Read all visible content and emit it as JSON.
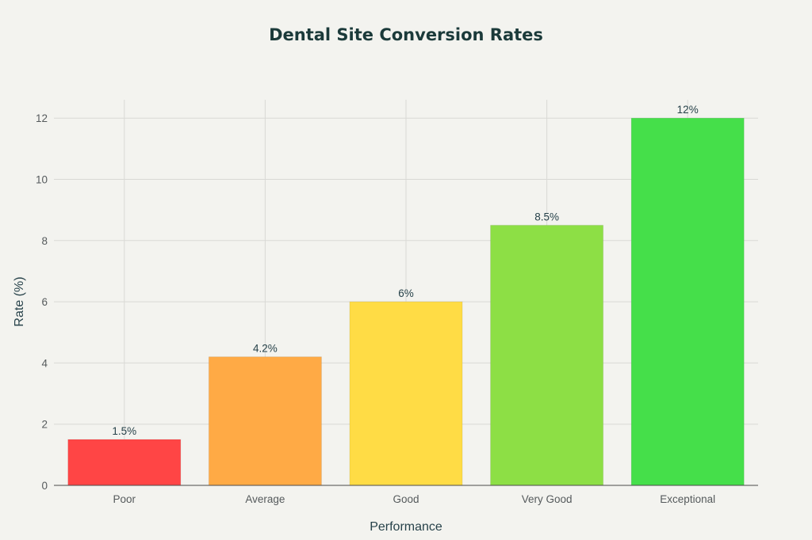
{
  "chart_data": {
    "type": "bar",
    "title": "Dental Site Conversion Rates",
    "xlabel": "Performance",
    "ylabel": "Rate (%)",
    "categories": [
      "Poor",
      "Average",
      "Good",
      "Very Good",
      "Exceptional"
    ],
    "values": [
      1.5,
      4.2,
      6,
      8.5,
      12
    ],
    "data_labels": [
      "1.5%",
      "4.2%",
      "6%",
      "8.5%",
      "12%"
    ],
    "colors": [
      "#ff4545",
      "#ffaa45",
      "#ffdc45",
      "#8ddf45",
      "#45df4a"
    ],
    "ylim": [
      0,
      12.6
    ],
    "yticks": [
      0,
      2,
      4,
      6,
      8,
      10,
      12
    ],
    "grid": true,
    "legend": "none"
  }
}
